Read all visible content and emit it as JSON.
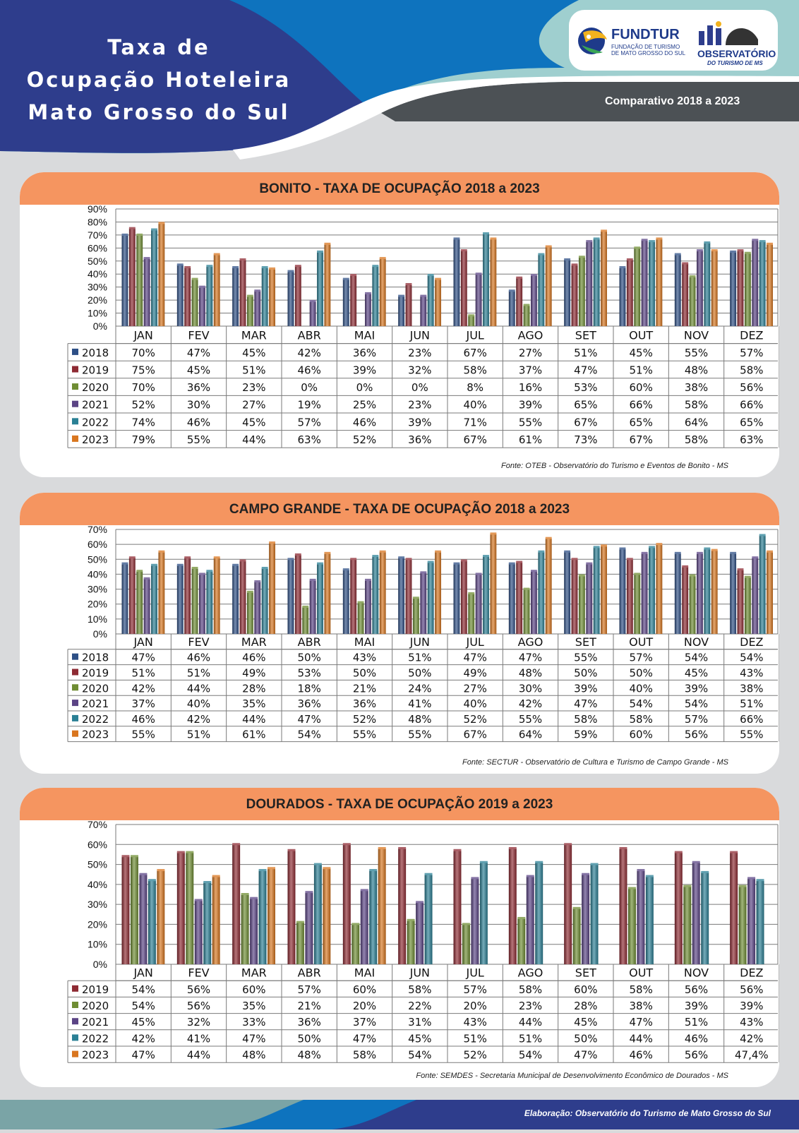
{
  "header": {
    "title_lines": [
      "Taxa de",
      "Ocupação Hoteleira",
      "Mato Grosso do Sul"
    ],
    "subtitle": "Comparativo 2018 a 2023",
    "logos": {
      "fundtur_name": "FUNDTUR",
      "fundtur_subtitle": "FUNDAÇÃO DE TURISMO DE MATO GROSSO DO SUL",
      "observatorio_name": "OBSERVATÓRIO",
      "observatorio_subtitle": "DO TURISMO DE MS"
    }
  },
  "colors": {
    "2018": "#2d4f86",
    "2019": "#8e2a33",
    "2020": "#6f8d33",
    "2021": "#5b4485",
    "2022": "#2a8095",
    "2023": "#d9761f",
    "panel_header": "#f59560",
    "header_navy": "#2e3d8c",
    "header_blue": "#0e73be",
    "header_teal": "#9fcfcf",
    "header_gray": "#4c5155"
  },
  "footer": {
    "text": "Elaboração: Observatório do Turismo de Mato Grosso do Sul"
  },
  "chart_data": [
    {
      "type": "bar",
      "title": "BONITO - TAXA DE OCUPAÇÃO 2018 a 2023",
      "source": "Fonte: OTEB - Observatório do Turismo e Eventos de Bonito - MS",
      "categories": [
        "JAN",
        "FEV",
        "MAR",
        "ABR",
        "MAI",
        "JUN",
        "JUL",
        "AGO",
        "SET",
        "OUT",
        "NOV",
        "DEZ"
      ],
      "ylim": [
        0,
        90
      ],
      "yticks": [
        "0%",
        "10%",
        "20%",
        "30%",
        "40%",
        "50%",
        "60%",
        "70%",
        "80%",
        "90%"
      ],
      "series": [
        {
          "name": "2018",
          "values": [
            70,
            47,
            45,
            42,
            36,
            23,
            67,
            27,
            51,
            45,
            55,
            57
          ],
          "labels": [
            "70%",
            "47%",
            "45%",
            "42%",
            "36%",
            "23%",
            "67%",
            "27%",
            "51%",
            "45%",
            "55%",
            "57%"
          ]
        },
        {
          "name": "2019",
          "values": [
            75,
            45,
            51,
            46,
            39,
            32,
            58,
            37,
            47,
            51,
            48,
            58
          ],
          "labels": [
            "75%",
            "45%",
            "51%",
            "46%",
            "39%",
            "32%",
            "58%",
            "37%",
            "47%",
            "51%",
            "48%",
            "58%"
          ]
        },
        {
          "name": "2020",
          "values": [
            70,
            36,
            23,
            0,
            0,
            0,
            8,
            16,
            53,
            60,
            38,
            56
          ],
          "labels": [
            "70%",
            "36%",
            "23%",
            "0%",
            "0%",
            "0%",
            "8%",
            "16%",
            "53%",
            "60%",
            "38%",
            "56%"
          ]
        },
        {
          "name": "2021",
          "values": [
            52,
            30,
            27,
            19,
            25,
            23,
            40,
            39,
            65,
            66,
            58,
            66
          ],
          "labels": [
            "52%",
            "30%",
            "27%",
            "19%",
            "25%",
            "23%",
            "40%",
            "39%",
            "65%",
            "66%",
            "58%",
            "66%"
          ]
        },
        {
          "name": "2022",
          "values": [
            74,
            46,
            45,
            57,
            46,
            39,
            71,
            55,
            67,
            65,
            64,
            65
          ],
          "labels": [
            "74%",
            "46%",
            "45%",
            "57%",
            "46%",
            "39%",
            "71%",
            "55%",
            "67%",
            "65%",
            "64%",
            "65%"
          ]
        },
        {
          "name": "2023",
          "values": [
            79,
            55,
            44,
            63,
            52,
            36,
            67,
            61,
            73,
            67,
            58,
            63
          ],
          "labels": [
            "79%",
            "55%",
            "44%",
            "63%",
            "52%",
            "36%",
            "67%",
            "61%",
            "73%",
            "67%",
            "58%",
            "63%"
          ]
        }
      ]
    },
    {
      "type": "bar",
      "title": "CAMPO GRANDE - TAXA DE OCUPAÇÃO 2018 a 2023",
      "source": "Fonte: SECTUR - Observatório de Cultura e Turismo de Campo Grande - MS",
      "categories": [
        "JAN",
        "FEV",
        "MAR",
        "ABR",
        "MAI",
        "JUN",
        "JUL",
        "AGO",
        "SET",
        "OUT",
        "NOV",
        "DEZ"
      ],
      "ylim": [
        0,
        70
      ],
      "yticks": [
        "0%",
        "10%",
        "20%",
        "30%",
        "40%",
        "50%",
        "60%",
        "70%"
      ],
      "series": [
        {
          "name": "2018",
          "values": [
            47,
            46,
            46,
            50,
            43,
            51,
            47,
            47,
            55,
            57,
            54,
            54
          ],
          "labels": [
            "47%",
            "46%",
            "46%",
            "50%",
            "43%",
            "51%",
            "47%",
            "47%",
            "55%",
            "57%",
            "54%",
            "54%"
          ]
        },
        {
          "name": "2019",
          "values": [
            51,
            51,
            49,
            53,
            50,
            50,
            49,
            48,
            50,
            50,
            45,
            43
          ],
          "labels": [
            "51%",
            "51%",
            "49%",
            "53%",
            "50%",
            "50%",
            "49%",
            "48%",
            "50%",
            "50%",
            "45%",
            "43%"
          ]
        },
        {
          "name": "2020",
          "values": [
            42,
            44,
            28,
            18,
            21,
            24,
            27,
            30,
            39,
            40,
            39,
            38
          ],
          "labels": [
            "42%",
            "44%",
            "28%",
            "18%",
            "21%",
            "24%",
            "27%",
            "30%",
            "39%",
            "40%",
            "39%",
            "38%"
          ]
        },
        {
          "name": "2021",
          "values": [
            37,
            40,
            35,
            36,
            36,
            41,
            40,
            42,
            47,
            54,
            54,
            51
          ],
          "labels": [
            "37%",
            "40%",
            "35%",
            "36%",
            "36%",
            "41%",
            "40%",
            "42%",
            "47%",
            "54%",
            "54%",
            "51%"
          ]
        },
        {
          "name": "2022",
          "values": [
            46,
            42,
            44,
            47,
            52,
            48,
            52,
            55,
            58,
            58,
            57,
            66
          ],
          "labels": [
            "46%",
            "42%",
            "44%",
            "47%",
            "52%",
            "48%",
            "52%",
            "55%",
            "58%",
            "58%",
            "57%",
            "66%"
          ]
        },
        {
          "name": "2023",
          "values": [
            55,
            51,
            61,
            54,
            55,
            55,
            67,
            64,
            59,
            60,
            56,
            55
          ],
          "labels": [
            "55%",
            "51%",
            "61%",
            "54%",
            "55%",
            "55%",
            "67%",
            "64%",
            "59%",
            "60%",
            "56%",
            "55%"
          ]
        }
      ]
    },
    {
      "type": "bar",
      "title": "DOURADOS - TAXA DE OCUPAÇÃO 2019 a 2023",
      "source": "Fonte: SEMDES - Secretaria Municipal de Desenvolvimento Econômico de Dourados - MS",
      "categories": [
        "JAN",
        "FEV",
        "MAR",
        "ABR",
        "MAI",
        "JUN",
        "JUL",
        "AGO",
        "SET",
        "OUT",
        "NOV",
        "DEZ"
      ],
      "ylim": [
        0,
        70
      ],
      "yticks": [
        "0%",
        "10%",
        "20%",
        "30%",
        "40%",
        "50%",
        "60%",
        "70%"
      ],
      "series": [
        {
          "name": "2019",
          "values": [
            54,
            56,
            60,
            57,
            60,
            58,
            57,
            58,
            60,
            58,
            56,
            56
          ],
          "labels": [
            "54%",
            "56%",
            "60%",
            "57%",
            "60%",
            "58%",
            "57%",
            "58%",
            "60%",
            "58%",
            "56%",
            "56%"
          ]
        },
        {
          "name": "2020",
          "values": [
            54,
            56,
            35,
            21,
            20,
            22,
            20,
            23,
            28,
            38,
            39,
            39
          ],
          "labels": [
            "54%",
            "56%",
            "35%",
            "21%",
            "20%",
            "22%",
            "20%",
            "23%",
            "28%",
            "38%",
            "39%",
            "39%"
          ]
        },
        {
          "name": "2021",
          "values": [
            45,
            32,
            33,
            36,
            37,
            31,
            43,
            44,
            45,
            47,
            51,
            43
          ],
          "labels": [
            "45%",
            "32%",
            "33%",
            "36%",
            "37%",
            "31%",
            "43%",
            "44%",
            "45%",
            "47%",
            "51%",
            "43%"
          ]
        },
        {
          "name": "2022",
          "values": [
            42,
            41,
            47,
            50,
            47,
            45,
            51,
            51,
            50,
            44,
            46,
            42
          ],
          "labels": [
            "42%",
            "41%",
            "47%",
            "50%",
            "47%",
            "45%",
            "51%",
            "51%",
            "50%",
            "44%",
            "46%",
            "42%"
          ]
        },
        {
          "name": "2023",
          "values": [
            47,
            44,
            48,
            48,
            58,
            null,
            null,
            null,
            null,
            null,
            null,
            null
          ],
          "labels": [
            "47%",
            "44%",
            "48%",
            "48%",
            "58%",
            "54%",
            "52%",
            "54%",
            "47%",
            "46%",
            "56%",
            "47,4%"
          ]
        }
      ]
    }
  ]
}
